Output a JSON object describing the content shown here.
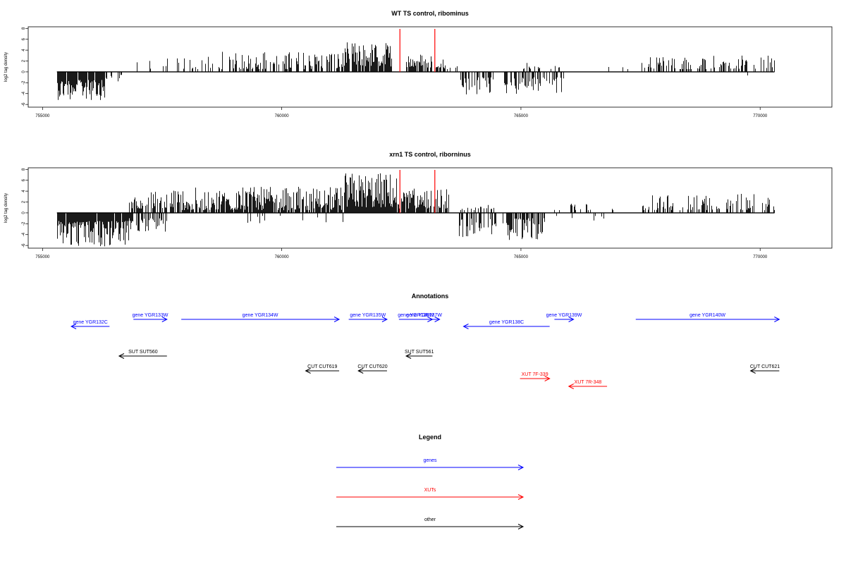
{
  "chart_data": [
    {
      "type": "bar",
      "title": "WT TS control, ribominus",
      "ylabel": "log2 tag density",
      "xlim": [
        754700,
        771500
      ],
      "ylim": [
        -6.5,
        8.3
      ],
      "xticks": [
        755000,
        760000,
        765000,
        770000
      ],
      "xtick_labels": [
        "755000",
        "760000",
        "765000",
        "770000"
      ],
      "yticks": [
        -6,
        -4,
        -2,
        0,
        2,
        4,
        6,
        8
      ],
      "ytick_labels": [
        "-6",
        "-4",
        "-2",
        "0",
        "2",
        "4",
        "6",
        "8"
      ],
      "baseline_range": [
        755300,
        770300
      ],
      "markers": [
        762470,
        763200
      ],
      "marker_color": "#ff0000",
      "bar_color": "#000000",
      "segments": [
        {
          "x0": 755300,
          "x1": 756300,
          "sign": -1,
          "min": 1.5,
          "max": 5.2,
          "density": 0.9
        },
        {
          "x0": 756300,
          "x1": 756700,
          "sign": -1,
          "min": 0.5,
          "max": 2.0,
          "density": 0.3
        },
        {
          "x0": 756900,
          "x1": 757200,
          "sign": 1,
          "min": 0.6,
          "max": 2.0,
          "density": 0.2
        },
        {
          "x0": 757200,
          "x1": 758500,
          "sign": 1,
          "min": 0.5,
          "max": 2.8,
          "density": 0.25
        },
        {
          "x0": 758500,
          "x1": 761300,
          "sign": 1,
          "min": 0.5,
          "max": 3.8,
          "density": 0.45
        },
        {
          "x0": 761300,
          "x1": 762300,
          "sign": 1,
          "min": 1.0,
          "max": 5.5,
          "density": 0.9
        },
        {
          "x0": 762600,
          "x1": 763400,
          "sign": 1,
          "min": 0.8,
          "max": 3.5,
          "density": 0.6
        },
        {
          "x0": 763400,
          "x1": 763700,
          "sign": 1,
          "min": 0.5,
          "max": 1.5,
          "density": 0.2
        },
        {
          "x0": 763700,
          "x1": 764500,
          "sign": -1,
          "min": 1.0,
          "max": 4.5,
          "density": 0.45
        },
        {
          "x0": 764600,
          "x1": 765900,
          "sign": -1,
          "min": 1.0,
          "max": 4.2,
          "density": 0.55
        },
        {
          "x0": 765000,
          "x1": 765900,
          "sign": 1,
          "min": 0.5,
          "max": 1.8,
          "density": 0.25
        },
        {
          "x0": 766700,
          "x1": 767300,
          "sign": 1,
          "min": 0.5,
          "max": 1.5,
          "density": 0.08
        },
        {
          "x0": 767500,
          "x1": 770300,
          "sign": 1,
          "min": 0.5,
          "max": 3.0,
          "density": 0.38
        },
        {
          "x0": 769700,
          "x1": 770200,
          "sign": -1,
          "min": 0.5,
          "max": 1.5,
          "density": 0.05
        }
      ]
    },
    {
      "type": "bar",
      "title": "xrn1 TS control, riborninus",
      "ylabel": "log2 tag density",
      "xlim": [
        754700,
        771500
      ],
      "ylim": [
        -6.5,
        8.3
      ],
      "xticks": [
        755000,
        760000,
        765000,
        770000
      ],
      "xtick_labels": [
        "755000",
        "760000",
        "765000",
        "770000"
      ],
      "yticks": [
        -6,
        -4,
        -2,
        0,
        2,
        4,
        6,
        8
      ],
      "ytick_labels": [
        "-6",
        "-4",
        "-2",
        "0",
        "2",
        "4",
        "6",
        "8"
      ],
      "baseline_range": [
        755300,
        770300
      ],
      "markers": [
        762470,
        763200
      ],
      "marker_color": "#ff0000",
      "bar_color": "#000000",
      "segments": [
        {
          "x0": 755300,
          "x1": 755400,
          "sign": 1,
          "min": 0.5,
          "max": 2.0,
          "density": 0.1
        },
        {
          "x0": 755300,
          "x1": 756800,
          "sign": -1,
          "min": 1.5,
          "max": 6.2,
          "density": 0.95
        },
        {
          "x0": 756800,
          "x1": 757600,
          "sign": -1,
          "min": 1.0,
          "max": 3.5,
          "density": 0.6
        },
        {
          "x0": 756800,
          "x1": 757700,
          "sign": 1,
          "min": 0.8,
          "max": 4.2,
          "density": 0.6
        },
        {
          "x0": 757700,
          "x1": 761300,
          "sign": 1,
          "min": 0.5,
          "max": 4.8,
          "density": 0.8
        },
        {
          "x0": 759000,
          "x1": 761300,
          "sign": -1,
          "min": 0.5,
          "max": 2.0,
          "density": 0.1
        },
        {
          "x0": 761300,
          "x1": 762400,
          "sign": 1,
          "min": 1.0,
          "max": 7.5,
          "density": 1.0
        },
        {
          "x0": 762400,
          "x1": 763500,
          "sign": 1,
          "min": 0.8,
          "max": 4.5,
          "density": 0.85
        },
        {
          "x0": 763700,
          "x1": 764500,
          "sign": -1,
          "min": 1.0,
          "max": 4.5,
          "density": 0.55
        },
        {
          "x0": 763700,
          "x1": 764500,
          "sign": 1,
          "min": 0.5,
          "max": 1.5,
          "density": 0.2
        },
        {
          "x0": 764600,
          "x1": 765500,
          "sign": -1,
          "min": 1.0,
          "max": 5.0,
          "density": 0.6
        },
        {
          "x0": 765500,
          "x1": 767000,
          "sign": 1,
          "min": 0.5,
          "max": 1.8,
          "density": 0.12
        },
        {
          "x0": 765500,
          "x1": 767000,
          "sign": -1,
          "min": 0.5,
          "max": 1.5,
          "density": 0.1
        },
        {
          "x0": 767500,
          "x1": 770300,
          "sign": 1,
          "min": 0.5,
          "max": 3.5,
          "density": 0.45
        },
        {
          "x0": 769700,
          "x1": 770200,
          "sign": -1,
          "min": 0.5,
          "max": 1.5,
          "density": 0.05
        }
      ]
    }
  ],
  "annotations": {
    "title": "Annotations",
    "xlim": [
      754700,
      771500
    ],
    "items": [
      {
        "label": "gene YGR132C",
        "start": 756400,
        "end": 755600,
        "row": 2,
        "color": "#0000ff"
      },
      {
        "label": "gene YGR133W",
        "start": 756900,
        "end": 757600,
        "row": 1,
        "color": "#0000ff"
      },
      {
        "label": "gene YGR134W",
        "start": 757900,
        "end": 761200,
        "row": 1,
        "color": "#0000ff"
      },
      {
        "label": "gene YGR135W",
        "start": 761400,
        "end": 762200,
        "row": 1,
        "color": "#0000ff"
      },
      {
        "label": "gene YGR136W",
        "start": 762450,
        "end": 763150,
        "row": 1,
        "color": "#0000ff"
      },
      {
        "label": "gene YGR137W",
        "start": 762650,
        "end": 763300,
        "row": 1,
        "color": "#0000ff"
      },
      {
        "label": "gene YGR138C",
        "start": 765600,
        "end": 763800,
        "row": 2,
        "color": "#0000ff"
      },
      {
        "label": "gene YGR139W",
        "start": 765700,
        "end": 766100,
        "row": 1,
        "color": "#0000ff"
      },
      {
        "label": "gene YGR140W",
        "start": 767400,
        "end": 770400,
        "row": 1,
        "color": "#0000ff"
      },
      {
        "label": "SUT SUT560",
        "start": 757600,
        "end": 756600,
        "row": 4,
        "color": "#000000"
      },
      {
        "label": "SUT SUT561",
        "start": 763150,
        "end": 762600,
        "row": 4,
        "color": "#000000"
      },
      {
        "label": "CUT CUT619",
        "start": 761200,
        "end": 760500,
        "row": 5,
        "color": "#000000"
      },
      {
        "label": "CUT CUT620",
        "start": 762200,
        "end": 761600,
        "row": 5,
        "color": "#000000"
      },
      {
        "label": "CUT CUT621",
        "start": 770400,
        "end": 769800,
        "row": 5,
        "color": "#000000"
      },
      {
        "label": "XUT 7F-339",
        "start": 764980,
        "end": 765600,
        "row": 6,
        "color": "#ff0000"
      },
      {
        "label": "XUT 7R-348",
        "start": 766800,
        "end": 766000,
        "row": 7,
        "color": "#ff0000"
      }
    ]
  },
  "legend": {
    "title": "Legend",
    "entries": [
      {
        "label": "genes",
        "color": "#0000ff"
      },
      {
        "label": "XUTs",
        "color": "#ff0000"
      },
      {
        "label": "other",
        "color": "#000000"
      }
    ]
  }
}
